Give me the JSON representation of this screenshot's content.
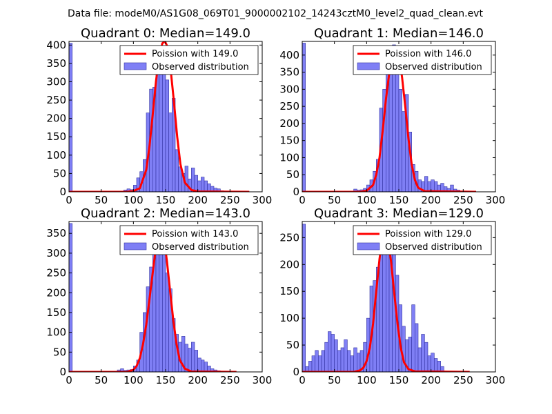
{
  "figure_title": "Data file: modeM0/AS1G08_069T01_9000002102_14243cztM0_level2_quad_clean.evt",
  "colors": {
    "bar_fill": "#7f7ff5",
    "bar_edge": "#3030a0",
    "poisson": "#ff0000"
  },
  "chart_data": [
    {
      "type": "bar",
      "title": "Quadrant 0: Median=149.0",
      "median": 149.0,
      "xlim": [
        0,
        300
      ],
      "ylim": [
        0,
        410
      ],
      "xticks": [
        0,
        50,
        100,
        150,
        200,
        250,
        300
      ],
      "yticks": [
        0,
        50,
        100,
        150,
        200,
        250,
        300,
        350,
        400
      ],
      "legend": [
        "Poission with 149.0",
        "Observed distribution"
      ],
      "legend_position": "top-right",
      "bin_width": 5,
      "bin_starts": [
        0,
        85,
        90,
        95,
        100,
        105,
        110,
        115,
        120,
        125,
        130,
        135,
        140,
        145,
        150,
        155,
        160,
        165,
        170,
        175,
        180,
        185,
        190,
        195,
        200,
        205,
        210,
        215,
        220,
        225,
        230,
        235
      ],
      "counts": [
        405,
        5,
        8,
        6,
        18,
        38,
        55,
        88,
        215,
        280,
        285,
        340,
        320,
        380,
        305,
        215,
        255,
        115,
        68,
        50,
        70,
        35,
        65,
        45,
        30,
        40,
        30,
        22,
        15,
        10,
        8,
        3
      ],
      "poisson_x": [
        0,
        90,
        100,
        110,
        120,
        125,
        130,
        135,
        140,
        145,
        149,
        153,
        158,
        163,
        168,
        173,
        180,
        190,
        200,
        280
      ],
      "poisson_y": [
        0,
        0,
        2,
        10,
        60,
        125,
        210,
        300,
        370,
        405,
        410,
        395,
        330,
        245,
        150,
        75,
        25,
        5,
        1,
        0
      ]
    },
    {
      "type": "bar",
      "title": "Quadrant 1: Median=146.0",
      "median": 146.0,
      "xlim": [
        0,
        300
      ],
      "ylim": [
        0,
        440
      ],
      "xticks": [
        0,
        50,
        100,
        150,
        200,
        250,
        300
      ],
      "yticks": [
        0,
        50,
        100,
        150,
        200,
        250,
        300,
        350,
        400
      ],
      "legend": [
        "Poission with 146.0",
        "Observed distribution"
      ],
      "legend_position": "top-right",
      "bin_width": 5,
      "bin_starts": [
        0,
        80,
        85,
        90,
        95,
        100,
        105,
        110,
        115,
        120,
        125,
        130,
        135,
        140,
        145,
        150,
        155,
        160,
        165,
        170,
        175,
        180,
        185,
        190,
        195,
        200,
        205,
        210,
        215,
        220,
        225,
        230,
        235,
        240
      ],
      "counts": [
        435,
        8,
        5,
        6,
        10,
        20,
        35,
        60,
        95,
        245,
        300,
        380,
        360,
        430,
        380,
        300,
        235,
        285,
        175,
        80,
        60,
        35,
        30,
        45,
        30,
        35,
        30,
        20,
        25,
        15,
        10,
        20,
        8,
        5
      ],
      "poisson_x": [
        0,
        90,
        100,
        110,
        115,
        120,
        125,
        130,
        135,
        140,
        146,
        150,
        155,
        160,
        165,
        170,
        175,
        180,
        190,
        270
      ],
      "poisson_y": [
        0,
        0,
        3,
        20,
        50,
        100,
        180,
        270,
        345,
        400,
        425,
        405,
        335,
        250,
        155,
        80,
        35,
        12,
        2,
        0
      ]
    },
    {
      "type": "bar",
      "title": "Quadrant 2: Median=143.0",
      "median": 143.0,
      "xlim": [
        0,
        300
      ],
      "ylim": [
        0,
        380
      ],
      "xticks": [
        0,
        50,
        100,
        150,
        200,
        250,
        300
      ],
      "yticks": [
        0,
        50,
        100,
        150,
        200,
        250,
        300,
        350
      ],
      "legend": [
        "Poission with 143.0",
        "Observed distribution"
      ],
      "legend_position": "top-right",
      "bin_width": 5,
      "bin_starts": [
        0,
        75,
        80,
        85,
        90,
        95,
        100,
        105,
        110,
        115,
        120,
        125,
        130,
        135,
        140,
        145,
        150,
        155,
        160,
        165,
        170,
        175,
        180,
        185,
        190,
        195,
        200,
        205,
        210,
        215,
        220,
        225,
        230
      ],
      "counts": [
        375,
        5,
        8,
        4,
        5,
        6,
        15,
        30,
        100,
        150,
        215,
        265,
        300,
        345,
        360,
        330,
        250,
        210,
        135,
        95,
        75,
        90,
        70,
        60,
        75,
        55,
        35,
        30,
        25,
        15,
        8,
        5,
        3
      ],
      "poisson_x": [
        0,
        90,
        100,
        105,
        110,
        115,
        120,
        125,
        130,
        135,
        143,
        147,
        152,
        157,
        162,
        167,
        172,
        180,
        190,
        260
      ],
      "poisson_y": [
        0,
        0,
        5,
        15,
        35,
        70,
        120,
        185,
        250,
        315,
        360,
        345,
        280,
        205,
        130,
        70,
        30,
        8,
        1,
        0
      ]
    },
    {
      "type": "bar",
      "title": "Quadrant 3: Median=129.0",
      "median": 129.0,
      "xlim": [
        0,
        300
      ],
      "ylim": [
        0,
        280
      ],
      "xticks": [
        0,
        50,
        100,
        150,
        200,
        250,
        300
      ],
      "yticks": [
        0,
        50,
        100,
        150,
        200,
        250
      ],
      "legend": [
        "Poission with 129.0",
        "Observed distribution"
      ],
      "legend_position": "top-right",
      "bin_width": 5,
      "bin_starts": [
        0,
        5,
        10,
        15,
        20,
        25,
        30,
        35,
        40,
        45,
        50,
        55,
        60,
        65,
        70,
        75,
        80,
        85,
        90,
        95,
        100,
        105,
        110,
        115,
        120,
        125,
        130,
        135,
        140,
        145,
        150,
        155,
        160,
        165,
        170,
        175,
        180,
        185,
        190,
        195,
        200,
        205,
        210,
        215
      ],
      "counts": [
        275,
        10,
        20,
        30,
        40,
        30,
        40,
        55,
        75,
        70,
        60,
        40,
        45,
        60,
        40,
        30,
        45,
        35,
        40,
        55,
        100,
        160,
        170,
        195,
        225,
        265,
        260,
        250,
        245,
        180,
        125,
        85,
        60,
        65,
        125,
        90,
        45,
        70,
        55,
        30,
        35,
        25,
        20,
        10
      ],
      "poisson_x": [
        0,
        80,
        90,
        95,
        100,
        105,
        110,
        115,
        120,
        125,
        129,
        133,
        138,
        143,
        148,
        153,
        158,
        165,
        175,
        260
      ],
      "poisson_y": [
        0,
        0,
        3,
        8,
        20,
        45,
        90,
        150,
        210,
        255,
        268,
        250,
        205,
        145,
        90,
        45,
        18,
        5,
        1,
        0
      ]
    }
  ]
}
